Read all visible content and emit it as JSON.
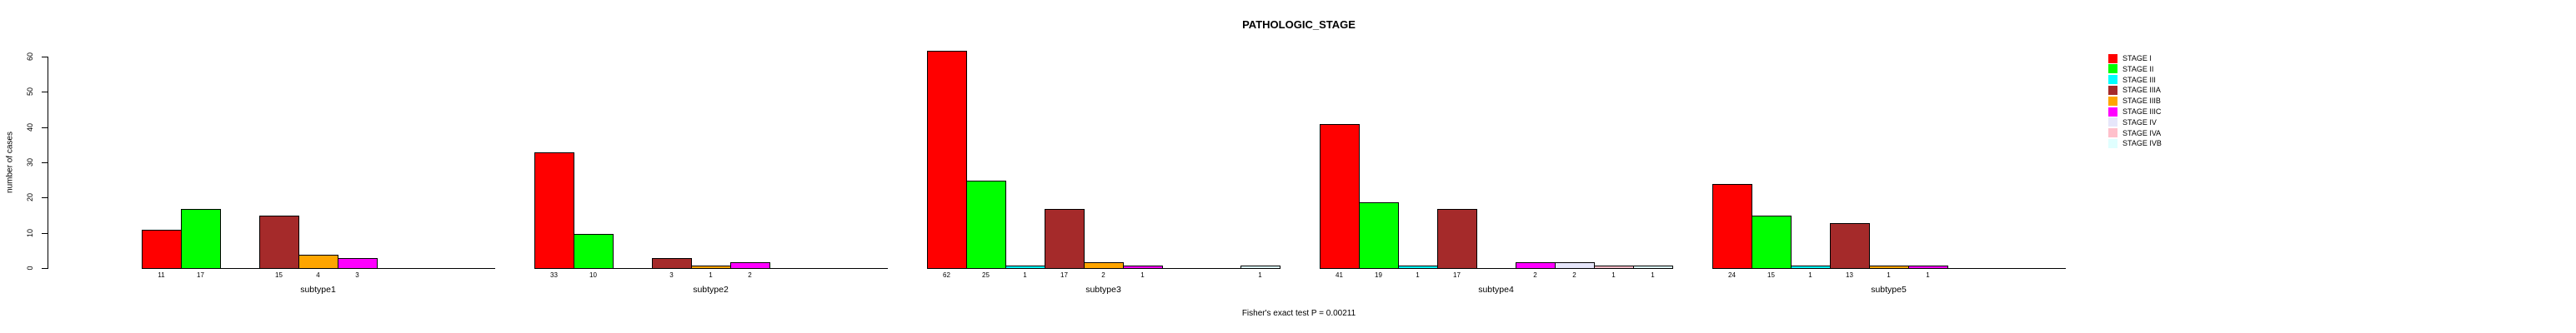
{
  "chart_data": {
    "type": "bar",
    "title": "PATHOLOGIC_STAGE",
    "ylabel": "number of cases",
    "xlabel": "",
    "ylim": [
      0,
      60
    ],
    "yticks": [
      "0",
      "10",
      "20",
      "30",
      "40",
      "50",
      "60"
    ],
    "grid": false,
    "legend_position": "right",
    "stages": [
      {
        "label": "STAGE I",
        "color": "#FF0000"
      },
      {
        "label": "STAGE II",
        "color": "#00FF00"
      },
      {
        "label": "STAGE III",
        "color": "#00FFFF"
      },
      {
        "label": "STAGE IIIA",
        "color": "#A52A2A"
      },
      {
        "label": "STAGE IIIB",
        "color": "#FFA500"
      },
      {
        "label": "STAGE IIIC",
        "color": "#FF00FF"
      },
      {
        "label": "STAGE IV",
        "color": "#E6E6FA"
      },
      {
        "label": "STAGE IVA",
        "color": "#FFC0CB"
      },
      {
        "label": "STAGE IVB",
        "color": "#E0FFFF"
      }
    ],
    "groups": [
      {
        "label": "subtype1",
        "values": [
          11,
          17,
          0,
          15,
          4,
          3,
          0,
          0,
          0
        ]
      },
      {
        "label": "subtype2",
        "values": [
          33,
          10,
          0,
          3,
          1,
          2,
          0,
          0,
          0
        ]
      },
      {
        "label": "subtype3",
        "values": [
          62,
          25,
          1,
          17,
          2,
          1,
          0,
          0,
          1
        ]
      },
      {
        "label": "subtype4",
        "values": [
          41,
          19,
          1,
          17,
          0,
          2,
          2,
          1,
          1
        ]
      },
      {
        "label": "subtype5",
        "values": [
          24,
          15,
          1,
          13,
          1,
          1,
          0,
          0,
          0
        ]
      }
    ],
    "footer": "Fisher's exact test P = 0.00211",
    "text_color": "#000000",
    "background_color": "#FFFFFF"
  }
}
